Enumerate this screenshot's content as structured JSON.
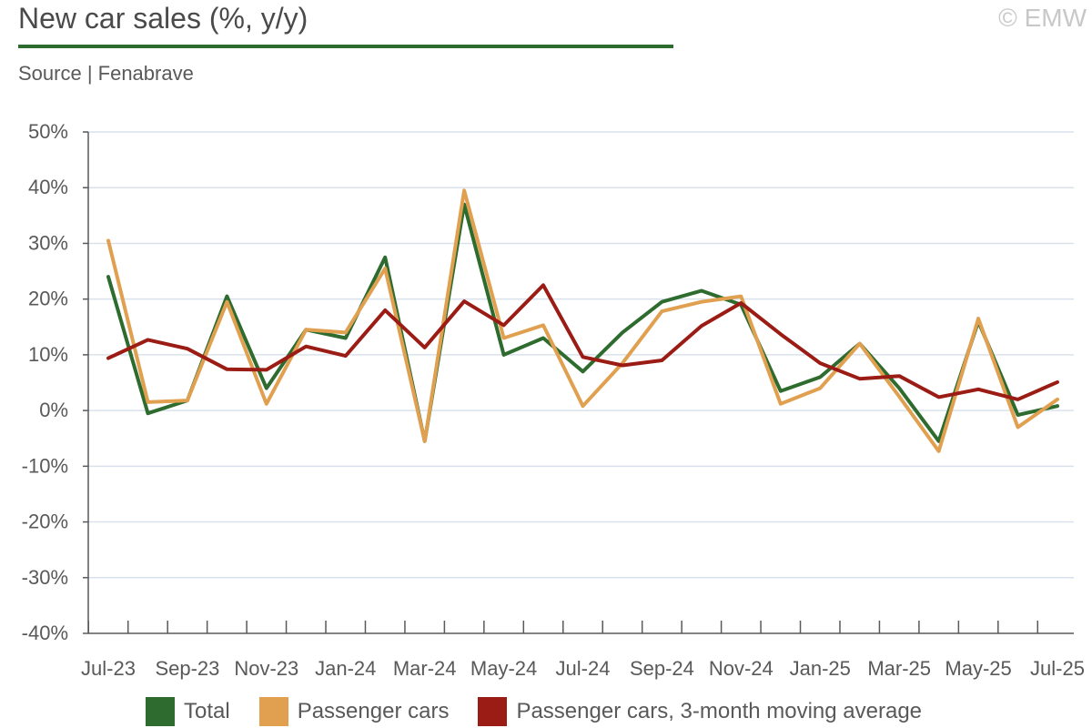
{
  "header": {
    "title": "New car sales (%, y/y)",
    "copyright": "© EMW",
    "source": "Source | Fenabrave"
  },
  "colors": {
    "title_rule": "#2e6b2e",
    "grid": "#d9e2ec",
    "axis": "#595959"
  },
  "chart_data": {
    "type": "line",
    "title": "New car sales (%, y/y)",
    "xlabel": "",
    "ylabel": "",
    "ylim": [
      -40,
      50
    ],
    "yticks": [
      -40,
      -30,
      -20,
      -10,
      0,
      10,
      20,
      30,
      40,
      50
    ],
    "ytick_labels": [
      "-40%",
      "-30%",
      "-20%",
      "-10%",
      "0%",
      "10%",
      "20%",
      "30%",
      "40%",
      "50%"
    ],
    "grid": true,
    "legend_position": "bottom",
    "x": [
      "Jul-23",
      "Aug-23",
      "Sep-23",
      "Oct-23",
      "Nov-23",
      "Dec-23",
      "Jan-24",
      "Feb-24",
      "Mar-24",
      "Apr-24",
      "May-24",
      "Jun-24",
      "Jul-24",
      "Aug-24",
      "Sep-24",
      "Oct-24",
      "Nov-24",
      "Dec-24",
      "Jan-25",
      "Feb-25",
      "Mar-25",
      "Apr-25",
      "May-25",
      "Jun-25",
      "Jul-25"
    ],
    "xtick_labels": [
      "Jul-23",
      "Sep-23",
      "Nov-23",
      "Jan-24",
      "Mar-24",
      "May-24",
      "Jul-24",
      "Sep-24",
      "Nov-24",
      "Jan-25",
      "Mar-25",
      "May-25",
      "Jul-25"
    ],
    "series": [
      {
        "name": "Total",
        "color": "#2e6b2e",
        "values": [
          24,
          -0.5,
          1.8,
          20.5,
          4,
          14.5,
          13,
          27.5,
          -5.5,
          37,
          10,
          13,
          7,
          14,
          19.5,
          21.5,
          19,
          3.5,
          6,
          12,
          4,
          -5.5,
          16,
          -0.8,
          0.8
        ]
      },
      {
        "name": "Passenger cars",
        "color": "#e0a050",
        "values": [
          30.5,
          1.5,
          1.8,
          19.5,
          1.2,
          14.5,
          14,
          25.5,
          -5.5,
          39.5,
          13,
          15.3,
          0.8,
          8.5,
          17.8,
          19.5,
          20.5,
          1.2,
          4,
          12,
          2.5,
          -7.3,
          16.5,
          -3,
          2
        ]
      },
      {
        "name": "Passenger cars, 3-month moving average",
        "color": "#9b1c14",
        "values": [
          9.4,
          12.7,
          11.1,
          7.4,
          7.3,
          11.5,
          9.8,
          18,
          11.3,
          19.6,
          15.3,
          22.5,
          9.6,
          8.1,
          9,
          15.2,
          19.3,
          13.7,
          8.5,
          5.7,
          6.2,
          2.4,
          3.8,
          2,
          5.1
        ]
      }
    ]
  }
}
